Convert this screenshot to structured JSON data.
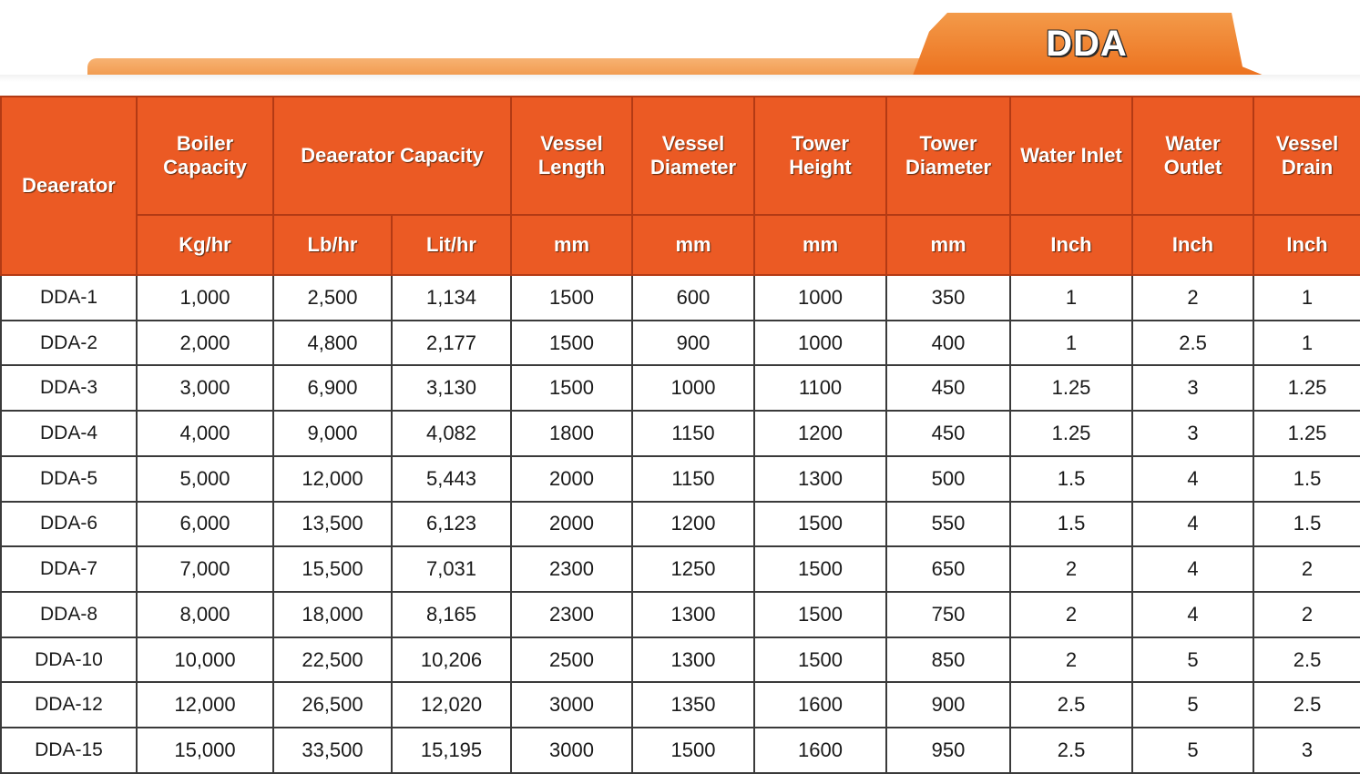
{
  "tab_title": "DDA",
  "headers": {
    "deaerator": "Deaerator",
    "boiler_capacity": "Boiler Capacity",
    "deaerator_capacity": "Deaerator Capacity",
    "vessel_length": "Vessel Length",
    "vessel_diameter": "Vessel Diameter",
    "tower_height": "Tower Height",
    "tower_diameter": "Tower Diameter",
    "water_inlet": "Water Inlet",
    "water_outlet": "Water Outlet",
    "vessel_drain": "Vessel Drain"
  },
  "units": [
    "Kg/hr",
    "Lb/hr",
    "Lit/hr",
    "mm",
    "mm",
    "mm",
    "mm",
    "Inch",
    "Inch",
    "Inch"
  ],
  "rows": [
    [
      "DDA-1",
      "1,000",
      "2,500",
      "1,134",
      "1500",
      "600",
      "1000",
      "350",
      "1",
      "2",
      "1"
    ],
    [
      "DDA-2",
      "2,000",
      "4,800",
      "2,177",
      "1500",
      "900",
      "1000",
      "400",
      "1",
      "2.5",
      "1"
    ],
    [
      "DDA-3",
      "3,000",
      "6,900",
      "3,130",
      "1500",
      "1000",
      "1100",
      "450",
      "1.25",
      "3",
      "1.25"
    ],
    [
      "DDA-4",
      "4,000",
      "9,000",
      "4,082",
      "1800",
      "1150",
      "1200",
      "450",
      "1.25",
      "3",
      "1.25"
    ],
    [
      "DDA-5",
      "5,000",
      "12,000",
      "5,443",
      "2000",
      "1150",
      "1300",
      "500",
      "1.5",
      "4",
      "1.5"
    ],
    [
      "DDA-6",
      "6,000",
      "13,500",
      "6,123",
      "2000",
      "1200",
      "1500",
      "550",
      "1.5",
      "4",
      "1.5"
    ],
    [
      "DDA-7",
      "7,000",
      "15,500",
      "7,031",
      "2300",
      "1250",
      "1500",
      "650",
      "2",
      "4",
      "2"
    ],
    [
      "DDA-8",
      "8,000",
      "18,000",
      "8,165",
      "2300",
      "1300",
      "1500",
      "750",
      "2",
      "4",
      "2"
    ],
    [
      "DDA-10",
      "10,000",
      "22,500",
      "10,206",
      "2500",
      "1300",
      "1500",
      "850",
      "2",
      "5",
      "2.5"
    ],
    [
      "DDA-12",
      "12,000",
      "26,500",
      "12,020",
      "3000",
      "1350",
      "1600",
      "900",
      "2.5",
      "5",
      "2.5"
    ],
    [
      "DDA-15",
      "15,000",
      "33,500",
      "15,195",
      "3000",
      "1500",
      "1600",
      "950",
      "2.5",
      "5",
      "3"
    ]
  ]
}
